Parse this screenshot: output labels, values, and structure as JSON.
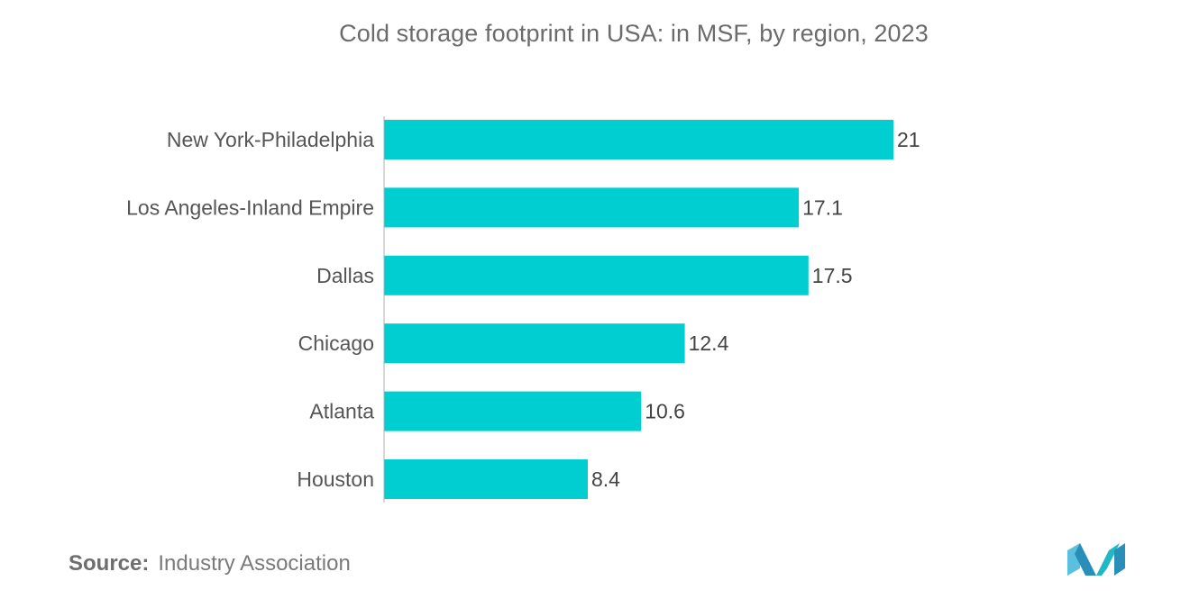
{
  "chart_data": {
    "type": "bar",
    "orientation": "horizontal",
    "title": "Cold storage footprint in USA: in MSF, by region, 2023",
    "categories": [
      "New York-Philadelphia",
      "Los Angeles-Inland Empire",
      "Dallas",
      "Chicago",
      "Atlanta",
      "Houston"
    ],
    "values": [
      21,
      17.1,
      17.5,
      12.4,
      10.6,
      8.4
    ],
    "data_labels": [
      "21",
      "17.1",
      "17.5",
      "12.4",
      "10.6",
      "8.4"
    ],
    "xlim": [
      0,
      21
    ],
    "grid": false,
    "legend": "none",
    "bar_color": "#00CED1",
    "axis_line_color": "#b0b0b0"
  },
  "source": {
    "label": "Source:",
    "text": "Industry Association"
  },
  "brand": {
    "logo_icon": "mordor-intelligence-logo-icon",
    "colors": [
      "#5bc0e0",
      "#2a8fb8",
      "#1fb8c4"
    ]
  }
}
